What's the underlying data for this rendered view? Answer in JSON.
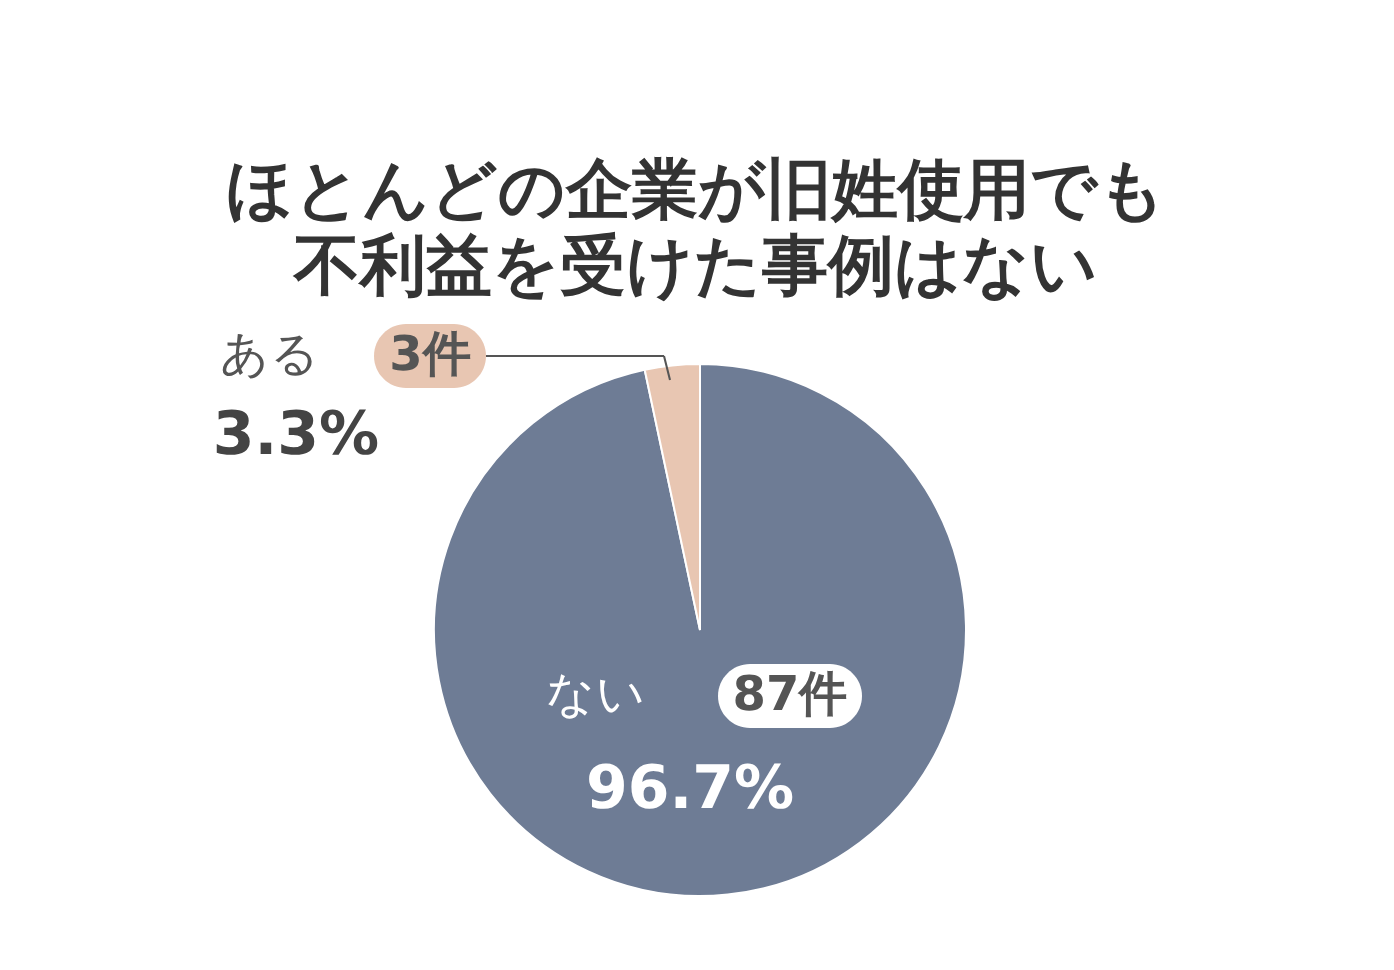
{
  "chart_data": {
    "type": "pie",
    "title": "ほとんどの企業が旧姓使用でも不利益を受けた事例はない",
    "categories": [
      "ない",
      "ある"
    ],
    "values": [
      87,
      3
    ],
    "colors": [
      "#6e7c95",
      "#e8c6b2"
    ],
    "value_labels": [
      "87件",
      "3件"
    ],
    "annotations": [
      "96.7%",
      "3.3%"
    ]
  }
}
